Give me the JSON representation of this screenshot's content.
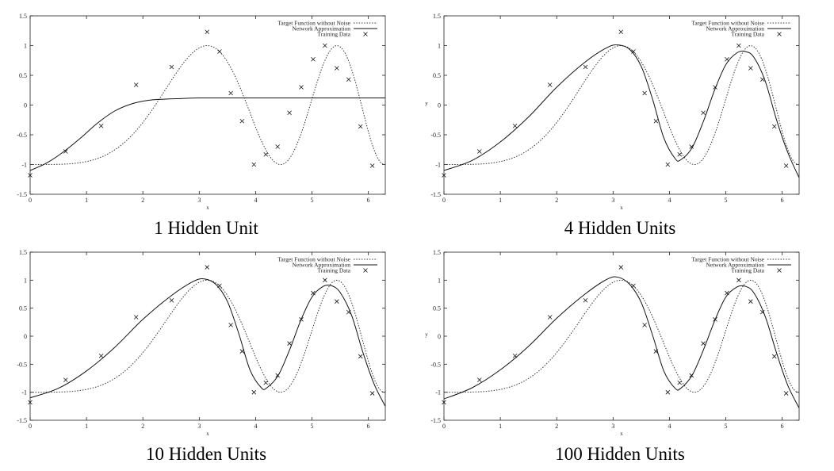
{
  "legend_labels": {
    "target": "Target Function without Noise",
    "network": "Network Approximation",
    "training": "Training Data"
  },
  "chart_data": [
    {
      "type": "line",
      "title": "1 Hidden Unit",
      "xlabel": "x",
      "ylabel": "",
      "xlim": [
        0,
        6.3
      ],
      "ylim": [
        -1.5,
        1.5
      ],
      "xticks": [
        0,
        1,
        2,
        3,
        4,
        5,
        6
      ],
      "yticks": [
        -1.5,
        -1,
        -0.5,
        0,
        0.5,
        1,
        1.5
      ],
      "ytick_labels": [
        "-1.5",
        "-1",
        "-0.5",
        "0",
        "0.5",
        "1",
        "1.5"
      ],
      "legend": "top-right",
      "series": [
        {
          "name": "Target Function without Noise",
          "style": "dotted",
          "function": "-cos(x^2/pi)"
        },
        {
          "name": "Network Approximation",
          "style": "solid",
          "x": [
            0,
            0.3,
            0.6,
            0.9,
            1.2,
            1.5,
            1.8,
            2.1,
            2.4,
            2.7,
            3.0,
            3.5,
            4.0,
            5.0,
            6.3
          ],
          "y": [
            -1.1,
            -0.97,
            -0.78,
            -0.55,
            -0.3,
            -0.1,
            0.02,
            0.08,
            0.1,
            0.11,
            0.12,
            0.12,
            0.12,
            0.12,
            0.12
          ]
        },
        {
          "name": "Training Data",
          "style": "points",
          "x": [
            0,
            0.63,
            1.26,
            1.88,
            2.51,
            3.14,
            3.36,
            3.56,
            3.76,
            3.97,
            4.18,
            4.39,
            4.6,
            4.81,
            5.02,
            5.23,
            5.44,
            5.65,
            5.86,
            6.07
          ],
          "y": [
            -1.18,
            -0.78,
            -0.35,
            0.34,
            0.64,
            1.23,
            0.9,
            0.2,
            -0.27,
            -1.0,
            -0.83,
            -0.7,
            -0.13,
            0.3,
            0.77,
            1.0,
            0.62,
            0.43,
            -0.36,
            -1.02
          ]
        }
      ]
    },
    {
      "type": "line",
      "title": "4 Hidden Units",
      "xlabel": "x",
      "ylabel": "y",
      "xlim": [
        0,
        6.3
      ],
      "ylim": [
        -1.5,
        1.5
      ],
      "xticks": [
        0,
        1,
        2,
        3,
        4,
        5,
        6
      ],
      "yticks": [
        -1.5,
        -1,
        -0.5,
        0,
        0.5,
        1,
        1.5
      ],
      "ytick_labels": [
        "-1.5",
        "-1",
        "-0.5",
        "0",
        "0.5",
        "1",
        "1.5"
      ],
      "legend": "top-right",
      "series": [
        {
          "name": "Target Function without Noise",
          "style": "dotted",
          "function": "-cos(x^2/pi)"
        },
        {
          "name": "Network Approximation",
          "style": "solid",
          "x": [
            0,
            0.5,
            1.0,
            1.5,
            2.0,
            2.5,
            2.9,
            3.1,
            3.3,
            3.5,
            3.7,
            3.9,
            4.1,
            4.2,
            4.4,
            4.6,
            4.8,
            5.0,
            5.2,
            5.35,
            5.5,
            5.7,
            5.9,
            6.1,
            6.3
          ],
          "y": [
            -1.1,
            -0.93,
            -0.62,
            -0.2,
            0.3,
            0.72,
            0.97,
            1.01,
            0.93,
            0.65,
            0.1,
            -0.55,
            -0.9,
            -0.92,
            -0.72,
            -0.28,
            0.25,
            0.68,
            0.88,
            0.9,
            0.8,
            0.4,
            -0.25,
            -0.8,
            -1.22
          ]
        },
        {
          "name": "Training Data",
          "style": "points",
          "x": [
            0,
            0.63,
            1.26,
            1.88,
            2.51,
            3.14,
            3.36,
            3.56,
            3.76,
            3.97,
            4.18,
            4.39,
            4.6,
            4.81,
            5.02,
            5.23,
            5.44,
            5.65,
            5.86,
            6.07
          ],
          "y": [
            -1.18,
            -0.78,
            -0.35,
            0.34,
            0.64,
            1.23,
            0.9,
            0.2,
            -0.27,
            -1.0,
            -0.83,
            -0.7,
            -0.13,
            0.3,
            0.77,
            1.0,
            0.62,
            0.43,
            -0.36,
            -1.02
          ]
        }
      ]
    },
    {
      "type": "line",
      "title": "10 Hidden Units",
      "xlabel": "x",
      "ylabel": "",
      "xlim": [
        0,
        6.3
      ],
      "ylim": [
        -1.5,
        1.5
      ],
      "xticks": [
        0,
        1,
        2,
        3,
        4,
        5,
        6
      ],
      "yticks": [
        -1.5,
        -1,
        -0.5,
        0,
        0.5,
        1,
        1.5
      ],
      "ytick_labels": [
        "-1.5",
        "-1",
        "-0.5",
        "0",
        "0.5",
        "1",
        "1.5"
      ],
      "legend": "top-right",
      "series": [
        {
          "name": "Target Function without Noise",
          "style": "dotted",
          "function": "-cos(x^2/pi)"
        },
        {
          "name": "Network Approximation",
          "style": "solid",
          "x": [
            0,
            0.5,
            1.0,
            1.5,
            2.0,
            2.5,
            2.9,
            3.1,
            3.3,
            3.5,
            3.7,
            3.9,
            4.1,
            4.2,
            4.4,
            4.6,
            4.8,
            5.0,
            5.2,
            5.35,
            5.5,
            5.7,
            5.9,
            6.1,
            6.3
          ],
          "y": [
            -1.1,
            -0.93,
            -0.62,
            -0.2,
            0.3,
            0.72,
            0.98,
            1.02,
            0.92,
            0.62,
            0.05,
            -0.6,
            -0.92,
            -0.92,
            -0.7,
            -0.25,
            0.28,
            0.7,
            0.89,
            0.9,
            0.78,
            0.38,
            -0.28,
            -0.85,
            -1.25
          ]
        },
        {
          "name": "Training Data",
          "style": "points",
          "x": [
            0,
            0.63,
            1.26,
            1.88,
            2.51,
            3.14,
            3.36,
            3.56,
            3.76,
            3.97,
            4.18,
            4.39,
            4.6,
            4.81,
            5.02,
            5.23,
            5.44,
            5.65,
            5.86,
            6.07
          ],
          "y": [
            -1.18,
            -0.78,
            -0.35,
            0.34,
            0.64,
            1.23,
            0.9,
            0.2,
            -0.27,
            -1.0,
            -0.83,
            -0.7,
            -0.13,
            0.3,
            0.77,
            1.0,
            0.62,
            0.43,
            -0.36,
            -1.02
          ]
        }
      ]
    },
    {
      "type": "line",
      "title": "100 Hidden Units",
      "xlabel": "x",
      "ylabel": "y",
      "xlim": [
        0,
        6.3
      ],
      "ylim": [
        -1.5,
        1.5
      ],
      "xticks": [
        0,
        1,
        2,
        3,
        4,
        5,
        6
      ],
      "yticks": [
        -1.5,
        -1,
        -0.5,
        0,
        0.5,
        1,
        1.5
      ],
      "ytick_labels": [
        "-1.5",
        "-1",
        "-0.5",
        "0",
        "0.5",
        "1",
        "1.5"
      ],
      "legend": "top-right",
      "series": [
        {
          "name": "Target Function without Noise",
          "style": "dotted",
          "function": "-cos(x^2/pi)"
        },
        {
          "name": "Network Approximation",
          "style": "solid",
          "x": [
            0,
            0.5,
            1.0,
            1.5,
            2.0,
            2.5,
            2.9,
            3.1,
            3.3,
            3.5,
            3.7,
            3.9,
            4.1,
            4.2,
            4.4,
            4.6,
            4.8,
            5.0,
            5.2,
            5.35,
            5.5,
            5.7,
            5.9,
            6.1,
            6.3
          ],
          "y": [
            -1.12,
            -0.92,
            -0.6,
            -0.18,
            0.32,
            0.75,
            1.02,
            1.05,
            0.92,
            0.6,
            0.02,
            -0.62,
            -0.93,
            -0.93,
            -0.7,
            -0.25,
            0.27,
            0.7,
            0.88,
            0.89,
            0.77,
            0.35,
            -0.3,
            -0.88,
            -1.28
          ]
        },
        {
          "name": "Training Data",
          "style": "points",
          "x": [
            0,
            0.63,
            1.26,
            1.88,
            2.51,
            3.14,
            3.36,
            3.56,
            3.76,
            3.97,
            4.18,
            4.39,
            4.6,
            4.81,
            5.02,
            5.23,
            5.44,
            5.65,
            5.86,
            6.07
          ],
          "y": [
            -1.18,
            -0.78,
            -0.35,
            0.34,
            0.64,
            1.23,
            0.9,
            0.2,
            -0.27,
            -1.0,
            -0.83,
            -0.7,
            -0.13,
            0.3,
            0.77,
            1.0,
            0.62,
            0.43,
            -0.36,
            -1.02
          ]
        }
      ]
    }
  ]
}
